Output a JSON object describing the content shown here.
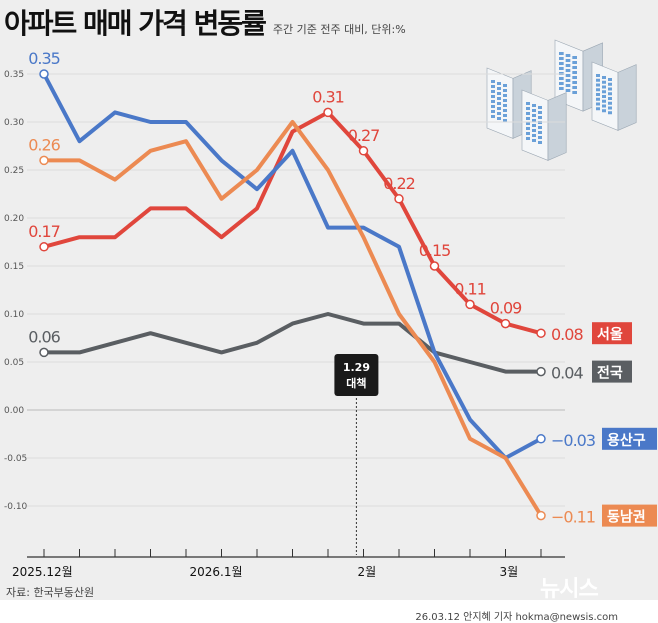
{
  "header": {
    "title": "아파트 매매 가격 변동률",
    "subtitle": "주간 기준 전주 대비, 단위:%"
  },
  "footer": {
    "source": "자료: 한국부동산원",
    "credit": "26.03.12 안지혜 기자 hokma@newsis.com",
    "logo": "뉴시스"
  },
  "chart_data": {
    "type": "line",
    "title": "아파트 매매 가격 변동률",
    "ylim": [
      -0.13,
      0.37
    ],
    "yticks": [
      "0.35",
      "0.30",
      "0.25",
      "0.20",
      "0.15",
      "0.10",
      "0.05",
      "0.00",
      "-0.05",
      "-0.10"
    ],
    "yvalues": [
      0.35,
      0.3,
      0.25,
      0.2,
      0.15,
      0.1,
      0.05,
      0,
      -0.05,
      -0.1
    ],
    "xlabels": [
      {
        "index": 0,
        "text": "2025.12월"
      },
      {
        "index": 5,
        "text": "2026.1월"
      },
      {
        "index": 9,
        "text": "2월"
      },
      {
        "index": 13,
        "text": "3월"
      }
    ],
    "annotation": {
      "position": 8.8,
      "line1": "1.29",
      "line2": "대책"
    },
    "series": [
      {
        "name": "서울",
        "color": "#e0463c",
        "values": [
          0.17,
          0.18,
          0.18,
          0.21,
          0.21,
          0.18,
          0.21,
          0.29,
          0.31,
          0.27,
          0.22,
          0.15,
          0.11,
          0.09,
          0.08
        ],
        "labels": [
          {
            "index": 0,
            "text": "0.17"
          },
          {
            "index": 8,
            "text": "0.31"
          },
          {
            "index": 9,
            "text": "0.27"
          },
          {
            "index": 10,
            "text": "0.22"
          },
          {
            "index": 11,
            "text": "0.15"
          },
          {
            "index": 12,
            "text": "0.11"
          },
          {
            "index": 13,
            "text": "0.09"
          }
        ],
        "end_label": "0.08"
      },
      {
        "name": "전국",
        "color": "#5a5e62",
        "values": [
          0.06,
          0.06,
          0.07,
          0.08,
          0.07,
          0.06,
          0.07,
          0.09,
          0.1,
          0.09,
          0.09,
          0.06,
          0.05,
          0.04,
          0.04
        ],
        "labels": [
          {
            "index": 0,
            "text": "0.06"
          }
        ],
        "end_label": "0.04"
      },
      {
        "name": "용산구",
        "color": "#4a78c8",
        "values": [
          0.35,
          0.28,
          0.31,
          0.3,
          0.3,
          0.26,
          0.23,
          0.27,
          0.19,
          0.19,
          0.17,
          0.06,
          -0.01,
          -0.05,
          -0.03
        ],
        "labels": [
          {
            "index": 0,
            "text": "0.35"
          }
        ],
        "end_label": "−0.03"
      },
      {
        "name": "동남권",
        "color": "#ec8a52",
        "values": [
          0.26,
          0.26,
          0.24,
          0.27,
          0.28,
          0.22,
          0.25,
          0.3,
          0.25,
          0.18,
          0.1,
          0.05,
          -0.03,
          -0.05,
          -0.11
        ],
        "labels": [
          {
            "index": 0,
            "text": "0.26"
          }
        ],
        "end_label": "−0.11"
      }
    ]
  }
}
